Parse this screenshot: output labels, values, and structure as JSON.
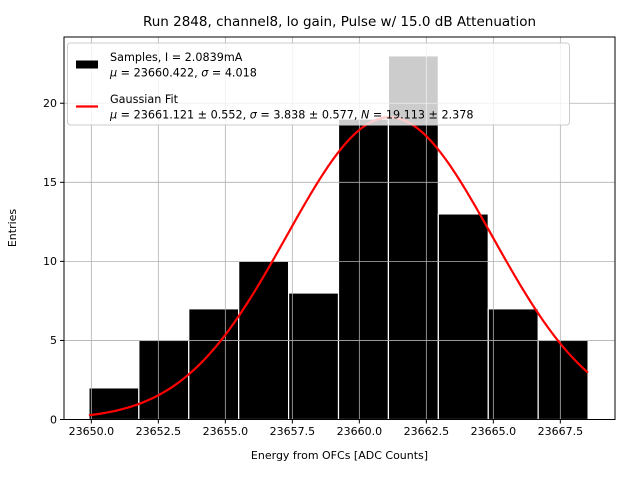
{
  "chart_data": {
    "type": "histogram",
    "title": "Run 2848, channel8, lo gain, Pulse w/ 15.0 dB Attenuation",
    "xlabel": "Energy from OFCs [ADC Counts]",
    "ylabel": "Entries",
    "bins": {
      "start": 23649.91,
      "width": 1.8626,
      "counts": [
        2,
        5,
        7,
        10,
        8,
        19,
        23,
        13,
        7,
        5
      ]
    },
    "total_entries": 99,
    "xticks": [
      23650.0,
      23652.5,
      23655.0,
      23657.5,
      23660.0,
      23662.5,
      23665.0,
      23667.5
    ],
    "xtick_labels": [
      "23650.0",
      "23652.5",
      "23655.0",
      "23657.5",
      "23660.0",
      "23662.5",
      "23665.0",
      "23667.5"
    ],
    "yticks": [
      0,
      5,
      10,
      15,
      20
    ],
    "xlim": [
      23648.98,
      23669.54
    ],
    "ylim": [
      0,
      24.19
    ],
    "grid": true,
    "fit": {
      "type": "gaussian",
      "mu": 23661.121,
      "sigma": 3.838,
      "amplitude": 19.113,
      "range": [
        23649.91,
        23668.53
      ]
    },
    "colors": {
      "bars": "#000000",
      "bar_edge": "#ffffff",
      "fit_line": "#ff0000",
      "grid": "#b0b0b0",
      "spine": "#000000",
      "legend_border": "#cccccc",
      "legend_bg": "#ffffff"
    },
    "legend": {
      "position": "upper left",
      "entries": [
        {
          "swatch": "bar",
          "color": "#000000",
          "lines": [
            "Samples, I = 2.0839mA",
            "μ = 23660.422, σ = 4.018"
          ]
        },
        {
          "swatch": "line",
          "color": "#ff0000",
          "lines": [
            "Gaussian Fit",
            "μ = 23661.121 ± 0.552, σ = 3.838 ± 0.577, N = 19.113 ± 2.378"
          ]
        }
      ]
    }
  }
}
